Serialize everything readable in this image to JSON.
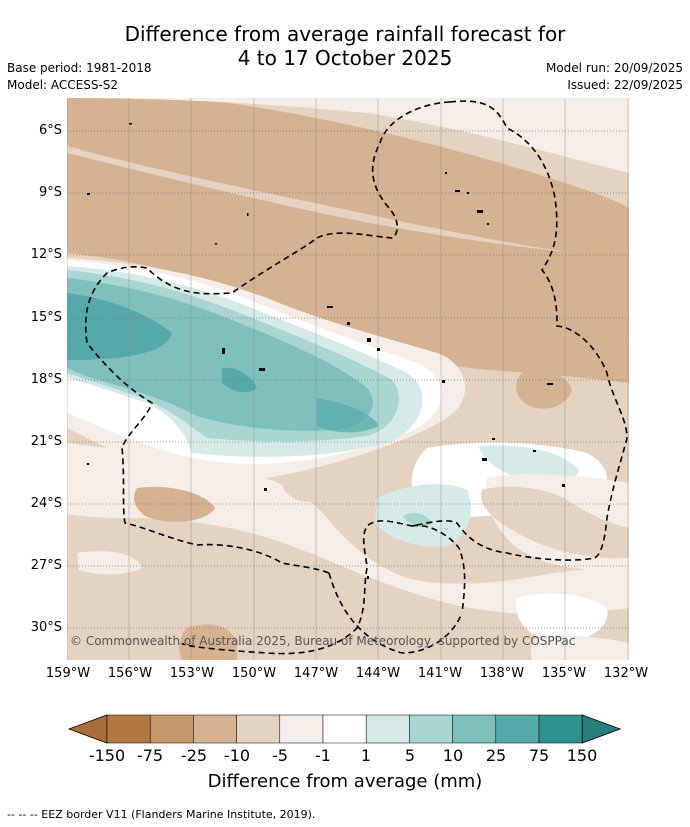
{
  "title_line1": "Difference from average rainfall forecast for",
  "title_line2": "4 to 17 October 2025",
  "base_period": "Base period: 1981-2018",
  "model": "Model: ACCESS-S2",
  "model_run": "Model run: 20/09/2025",
  "issued": "Issued: 22/09/2025",
  "latitudes": [
    "6°S",
    "9°S",
    "12°S",
    "15°S",
    "18°S",
    "21°S",
    "24°S",
    "27°S",
    "30°S"
  ],
  "longitudes": [
    "159°W",
    "156°W",
    "153°W",
    "150°W",
    "147°W",
    "144°W",
    "141°W",
    "138°W",
    "135°W",
    "132°W"
  ],
  "copyright": "© Commonwealth of Australia 2025, Bureau of Meteorology, supported by COSPPac",
  "colorbar": {
    "labels": [
      "-150",
      "-75",
      "-25",
      "-10",
      "-5",
      "-1",
      "1",
      "5",
      "10",
      "25",
      "75",
      "150"
    ],
    "colors": [
      "#a86f3a",
      "#b07842",
      "#c4966a",
      "#d4b292",
      "#e6d2c0",
      "#f5ede7",
      "#ffffff",
      "#d6ebe9",
      "#a9d5d3",
      "#7fc0bf",
      "#55a9a8",
      "#2e918f",
      "#287e7d"
    ],
    "title": "Difference from average (mm)"
  },
  "footer": "--  --  -- EEZ border V11 (Flanders Marine Institute, 2019)."
}
